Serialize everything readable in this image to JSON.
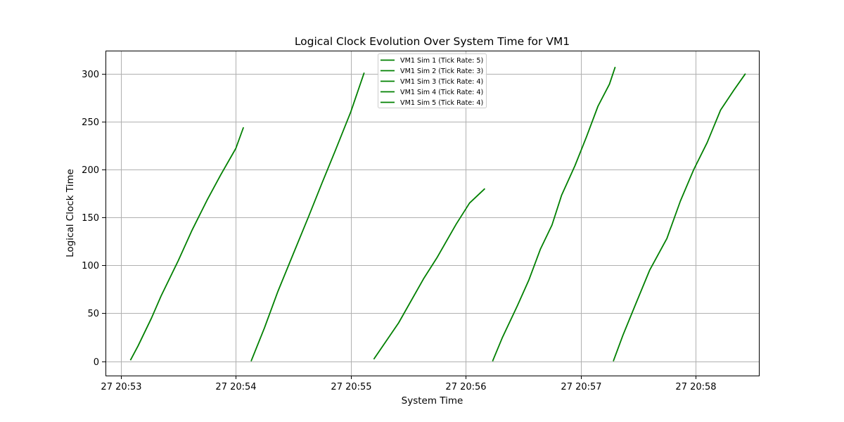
{
  "chart_data": {
    "type": "line",
    "title": "Logical Clock Evolution Over System Time for VM1",
    "xlabel": "System Time",
    "ylabel": "Logical Clock Time",
    "x_ticks": [
      "27 20:53",
      "27 20:54",
      "27 20:55",
      "27 20:56",
      "27 20:57",
      "27 20:58"
    ],
    "y_ticks": [
      0,
      50,
      100,
      150,
      200,
      250,
      300
    ],
    "xlim": [
      "20:52:52",
      "20:58:33"
    ],
    "ylim": [
      -15,
      324
    ],
    "grid": true,
    "legend_position": "upper center",
    "line_color": "#008000",
    "series": [
      {
        "name": "VM1 Sim 1 (Tick Rate: 5)",
        "points": [
          [
            "20:53:05",
            1
          ],
          [
            "20:53:09",
            16
          ],
          [
            "20:53:16",
            45
          ],
          [
            "20:53:21",
            68
          ],
          [
            "20:53:30",
            105
          ],
          [
            "20:53:37",
            136
          ],
          [
            "20:53:45",
            168
          ],
          [
            "20:53:52",
            194
          ],
          [
            "20:54:00",
            222
          ],
          [
            "20:54:04",
            244
          ]
        ]
      },
      {
        "name": "VM1 Sim 2 (Tick Rate: 3)",
        "points": [
          [
            "20:54:08",
            0
          ],
          [
            "20:54:15",
            35
          ],
          [
            "20:54:22",
            73
          ],
          [
            "20:54:30",
            112
          ],
          [
            "20:54:38",
            151
          ],
          [
            "20:54:45",
            186
          ],
          [
            "20:54:52",
            220
          ],
          [
            "20:55:00",
            260
          ],
          [
            "20:55:07",
            301
          ]
        ]
      },
      {
        "name": "VM1 Sim 3 (Tick Rate: 4)",
        "points": [
          [
            "20:55:12",
            2
          ],
          [
            "20:55:25",
            40
          ],
          [
            "20:55:38",
            86
          ],
          [
            "20:55:45",
            108
          ],
          [
            "20:55:55",
            143
          ],
          [
            "20:56:02",
            165
          ],
          [
            "20:56:10",
            180
          ]
        ]
      },
      {
        "name": "VM1 Sim 4 (Tick Rate: 4)",
        "points": [
          [
            "20:56:14",
            0
          ],
          [
            "20:56:19",
            24
          ],
          [
            "20:56:27",
            58
          ],
          [
            "20:56:33",
            85
          ],
          [
            "20:56:39",
            117
          ],
          [
            "20:56:45",
            142
          ],
          [
            "20:56:50",
            173
          ],
          [
            "20:56:57",
            204
          ],
          [
            "20:57:03",
            234
          ],
          [
            "20:57:09",
            266
          ],
          [
            "20:57:15",
            289
          ],
          [
            "20:57:18",
            307
          ]
        ]
      },
      {
        "name": "VM1 Sim 5 (Tick Rate: 4)",
        "points": [
          [
            "20:57:17",
            0
          ],
          [
            "20:57:22",
            27
          ],
          [
            "20:57:29",
            61
          ],
          [
            "20:57:36",
            95
          ],
          [
            "20:57:45",
            128
          ],
          [
            "20:57:52",
            167
          ],
          [
            "20:57:59",
            200
          ],
          [
            "20:58:06",
            228
          ],
          [
            "20:58:13",
            262
          ],
          [
            "20:58:20",
            283
          ],
          [
            "20:58:26",
            300
          ]
        ]
      }
    ]
  }
}
